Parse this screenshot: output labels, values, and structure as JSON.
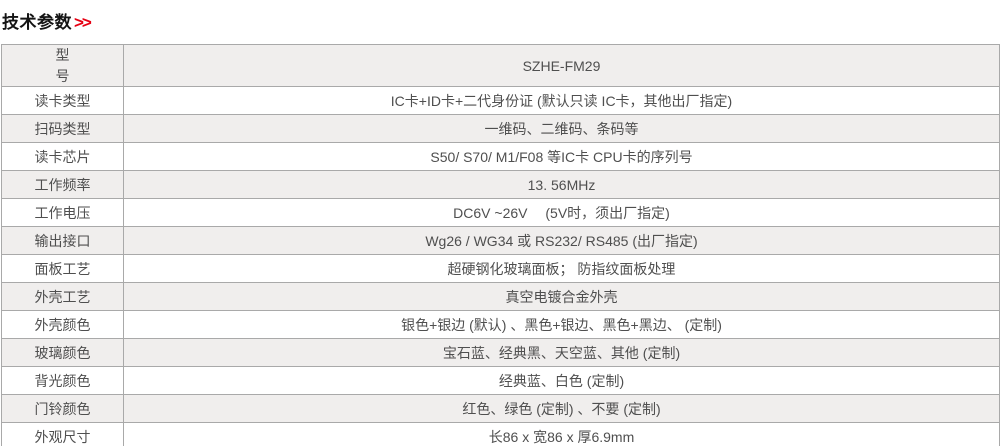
{
  "header": {
    "title": "技术参数",
    "arrows": ">>"
  },
  "colors": {
    "accent_red": "#e60012",
    "stripe_bg": "#f0eeed",
    "border_gray": "#a9a9a9",
    "text_gray": "#4f4f4f"
  },
  "table": {
    "rows": [
      {
        "label": "型号",
        "value": "SZHE-FM29"
      },
      {
        "label": "读卡类型",
        "value": "IC卡+ID卡+二代身份证 (默认只读 IC卡，其他出厂指定)"
      },
      {
        "label": "扫码类型",
        "value": "一维码、二维码、条码等"
      },
      {
        "label": "读卡芯片",
        "value": "S50/ S70/ M1/F08 等IC卡 CPU卡的序列号"
      },
      {
        "label": "工作频率",
        "value": "13. 56MHz"
      },
      {
        "label": "工作电压",
        "value": "DC6V ~26V　 (5V时，须出厂指定)"
      },
      {
        "label": "输出接口",
        "value": "Wg26 / WG34 或  RS232/ RS485 (出厂指定)"
      },
      {
        "label": "面板工艺",
        "value": "超硬钢化玻璃面板； 防指纹面板处理"
      },
      {
        "label": "外壳工艺",
        "value": "真空电镀合金外壳"
      },
      {
        "label": "外壳颜色",
        "value": "银色+银边 (默认) 、黑色+银边、黑色+黑边、 (定制)"
      },
      {
        "label": "玻璃颜色",
        "value": "宝石蓝、经典黑、天空蓝、其他 (定制)"
      },
      {
        "label": "背光颜色",
        "value": "经典蓝、白色 (定制)"
      },
      {
        "label": "门铃颜色",
        "value": "红色、绿色 (定制) 、不要 (定制)"
      },
      {
        "label": "外观尺寸",
        "value": "长86 x 宽86 x 厚6.9mm"
      }
    ]
  }
}
